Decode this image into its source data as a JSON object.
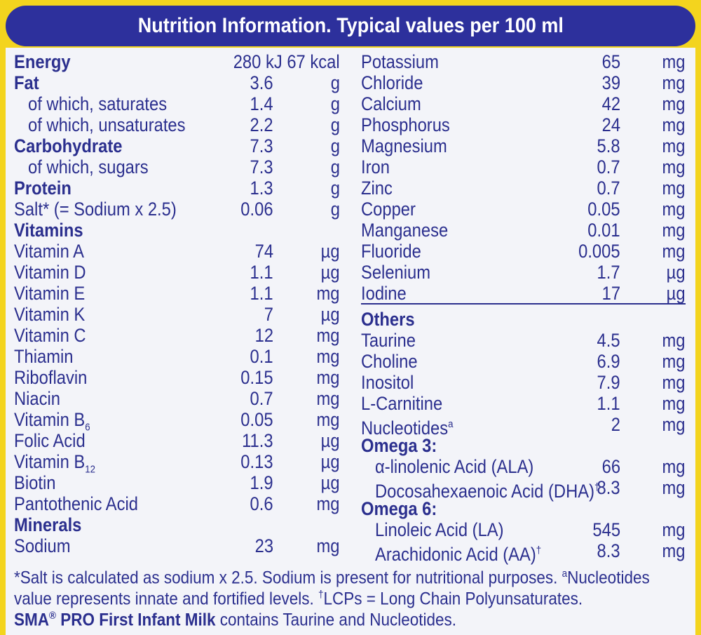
{
  "header": {
    "title": "Nutrition Information. Typical values per 100 ml"
  },
  "left": {
    "rows": [
      {
        "label": "Energy",
        "value": "280 kJ 67 kcal"
      },
      {
        "label": "Fat",
        "value": "3.6",
        "unit": "g"
      },
      {
        "label": "of which, saturates",
        "value": "1.4",
        "unit": "g"
      },
      {
        "label": "of which, unsaturates",
        "value": "2.2",
        "unit": "g"
      },
      {
        "label": "Carbohydrate",
        "value": "7.3",
        "unit": "g"
      },
      {
        "label": "of which, sugars",
        "value": "7.3",
        "unit": "g"
      },
      {
        "label": "Protein",
        "value": "1.3",
        "unit": "g"
      },
      {
        "label": "Salt* (= Sodium x 2.5)",
        "value": "0.06",
        "unit": "g"
      },
      {
        "label": "Vitamins"
      },
      {
        "label": "Vitamin A",
        "value": "74",
        "unit": "µg"
      },
      {
        "label": "Vitamin D",
        "value": "1.1",
        "unit": "µg"
      },
      {
        "label": "Vitamin E",
        "value": "1.1",
        "unit": "mg"
      },
      {
        "label": "Vitamin K",
        "value": "7",
        "unit": "µg"
      },
      {
        "label": "Vitamin C",
        "value": "12",
        "unit": "mg"
      },
      {
        "label": "Thiamin",
        "value": "0.1",
        "unit": "mg"
      },
      {
        "label": "Riboflavin",
        "value": "0.15",
        "unit": "mg"
      },
      {
        "label": "Niacin",
        "value": "0.7",
        "unit": "mg"
      },
      {
        "label": "Vitamin B",
        "sub": "6",
        "value": "0.05",
        "unit": "mg"
      },
      {
        "label": "Folic Acid",
        "value": "11.3",
        "unit": "µg"
      },
      {
        "label": "Vitamin B",
        "sub": "12",
        "value": "0.13",
        "unit": "µg"
      },
      {
        "label": "Biotin",
        "value": "1.9",
        "unit": "µg"
      },
      {
        "label": "Pantothenic Acid",
        "value": "0.6",
        "unit": "mg"
      },
      {
        "label": "Minerals"
      },
      {
        "label": "Sodium",
        "value": "23",
        "unit": "mg"
      }
    ]
  },
  "right": {
    "rows": [
      {
        "label": "Potassium",
        "value": "65",
        "unit": "mg"
      },
      {
        "label": "Chloride",
        "value": "39",
        "unit": "mg"
      },
      {
        "label": "Calcium",
        "value": "42",
        "unit": "mg"
      },
      {
        "label": "Phosphorus",
        "value": "24",
        "unit": "mg"
      },
      {
        "label": "Magnesium",
        "value": "5.8",
        "unit": "mg"
      },
      {
        "label": "Iron",
        "value": "0.7",
        "unit": "mg"
      },
      {
        "label": "Zinc",
        "value": "0.7",
        "unit": "mg"
      },
      {
        "label": "Copper",
        "value": "0.05",
        "unit": "mg"
      },
      {
        "label": "Manganese",
        "value": "0.01",
        "unit": "mg"
      },
      {
        "label": "Fluoride",
        "value": "0.005",
        "unit": "mg"
      },
      {
        "label": "Selenium",
        "value": "1.7",
        "unit": "µg"
      },
      {
        "label": "Iodine",
        "value": "17",
        "unit": "µg"
      },
      {
        "label": "Others"
      },
      {
        "label": "Taurine",
        "value": "4.5",
        "unit": "mg"
      },
      {
        "label": "Choline",
        "value": "6.9",
        "unit": "mg"
      },
      {
        "label": "Inositol",
        "value": "7.9",
        "unit": "mg"
      },
      {
        "label": "L-Carnitine",
        "value": "1.1",
        "unit": "mg"
      },
      {
        "label": "Nucleotides",
        "sup": "a",
        "value": "2",
        "unit": "mg"
      },
      {
        "label": "Omega 3:"
      },
      {
        "label": "α-linolenic Acid (ALA)",
        "value": "66",
        "unit": "mg"
      },
      {
        "label": "Docosahexaenoic Acid (DHA)",
        "sup": "†",
        "value": "8.3",
        "unit": "mg"
      },
      {
        "label": "Omega 6:"
      },
      {
        "label": "Linoleic Acid (LA)",
        "value": "545",
        "unit": "mg"
      },
      {
        "label": "Arachidonic Acid (AA)",
        "sup": "†",
        "value": "8.3",
        "unit": "mg"
      }
    ]
  },
  "footnote": {
    "lines": [
      [
        {
          "text": "*Salt is calculated as sodium x 2.5. Sodium is present for nutritional purposes. "
        },
        {
          "sup": "a"
        },
        {
          "text": "Nucleotides"
        }
      ],
      [
        {
          "text": "value represents innate and fortified levels. "
        },
        {
          "sup": "†"
        },
        {
          "text": "LCPs = Long Chain Polyunsaturates."
        }
      ],
      [
        {
          "text": "SMA"
        },
        {
          "sup": "®"
        },
        {
          "text": " PRO First Infant Milk"
        },
        {
          "text": " contains Taurine and Nucleotides."
        }
      ]
    ]
  }
}
